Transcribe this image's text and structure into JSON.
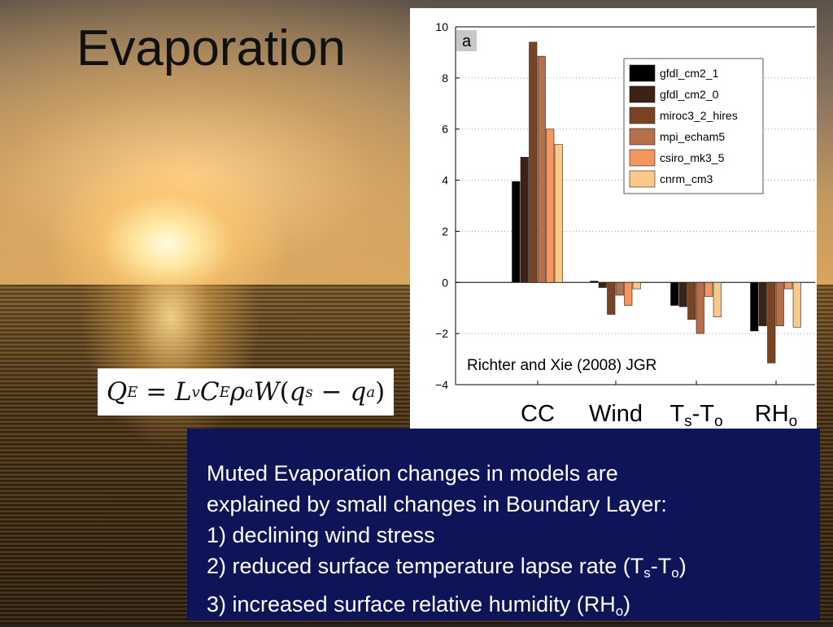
{
  "slide": {
    "title": "Evaporation",
    "equation": {
      "lhs": "Q",
      "lhs_sub": "E",
      "L": "L",
      "L_sub": "v",
      "C": "C",
      "C_sub": "E",
      "rho": "ρ",
      "rho_sub": "a",
      "W": "W",
      "qs": "q",
      "qs_sub": "s",
      "qa": "q",
      "qa_sub": "a"
    },
    "text": {
      "line1": "Muted Evaporation changes in models are",
      "line2": "explained by small changes in Boundary Layer:",
      "line3": "1) declining wind stress",
      "line4_pre": "2) reduced surface temperature lapse rate (T",
      "line4_sub1": "s",
      "line4_mid": "-T",
      "line4_sub2": "o",
      "line4_post": ")",
      "line5_pre": "3) increased surface relative humidity (RH",
      "line5_sub": "o",
      "line5_post": ")"
    },
    "category_labels": {
      "cc": "CC",
      "wind": "Wind",
      "ts_to": {
        "a": "T",
        "a_sub": "s",
        "mid": "-T",
        "b_sub": "o"
      },
      "rh": {
        "a": "RH",
        "a_sub": "o"
      }
    }
  },
  "chart_data": {
    "type": "bar",
    "panel_label": "a",
    "annotation": "Richter and Xie (2008) JGR",
    "categories": [
      "CC",
      "Wind",
      "Ts-To",
      "RHo"
    ],
    "ylim": [
      -4,
      10
    ],
    "yticks": [
      "−4",
      "−2",
      "0",
      "2",
      "4",
      "6",
      "8",
      "10"
    ],
    "ytick_values": [
      -4,
      -2,
      0,
      2,
      4,
      6,
      8,
      10
    ],
    "grid": "horizontal dotted",
    "legend_position": "top-right",
    "series": [
      {
        "name": "gfdl_cm2_1",
        "color": "#000000",
        "values": [
          3.95,
          0.05,
          -0.9,
          -1.9
        ]
      },
      {
        "name": "gfdl_cm2_0",
        "color": "#3b2214",
        "values": [
          4.9,
          -0.2,
          -0.95,
          -1.7
        ]
      },
      {
        "name": "miroc3_2_hires",
        "color": "#7a4424",
        "values": [
          9.4,
          -1.25,
          -1.45,
          -3.15
        ]
      },
      {
        "name": "mpi_echam5",
        "color": "#b5704a",
        "values": [
          8.85,
          -0.5,
          -2.0,
          -1.7
        ]
      },
      {
        "name": "csiro_mk3_5",
        "color": "#f5955f",
        "values": [
          6.0,
          -0.9,
          -0.55,
          -0.25
        ]
      },
      {
        "name": "cnrm_cm3",
        "color": "#fbc888",
        "values": [
          5.4,
          -0.25,
          -1.35,
          -1.75
        ]
      }
    ]
  }
}
